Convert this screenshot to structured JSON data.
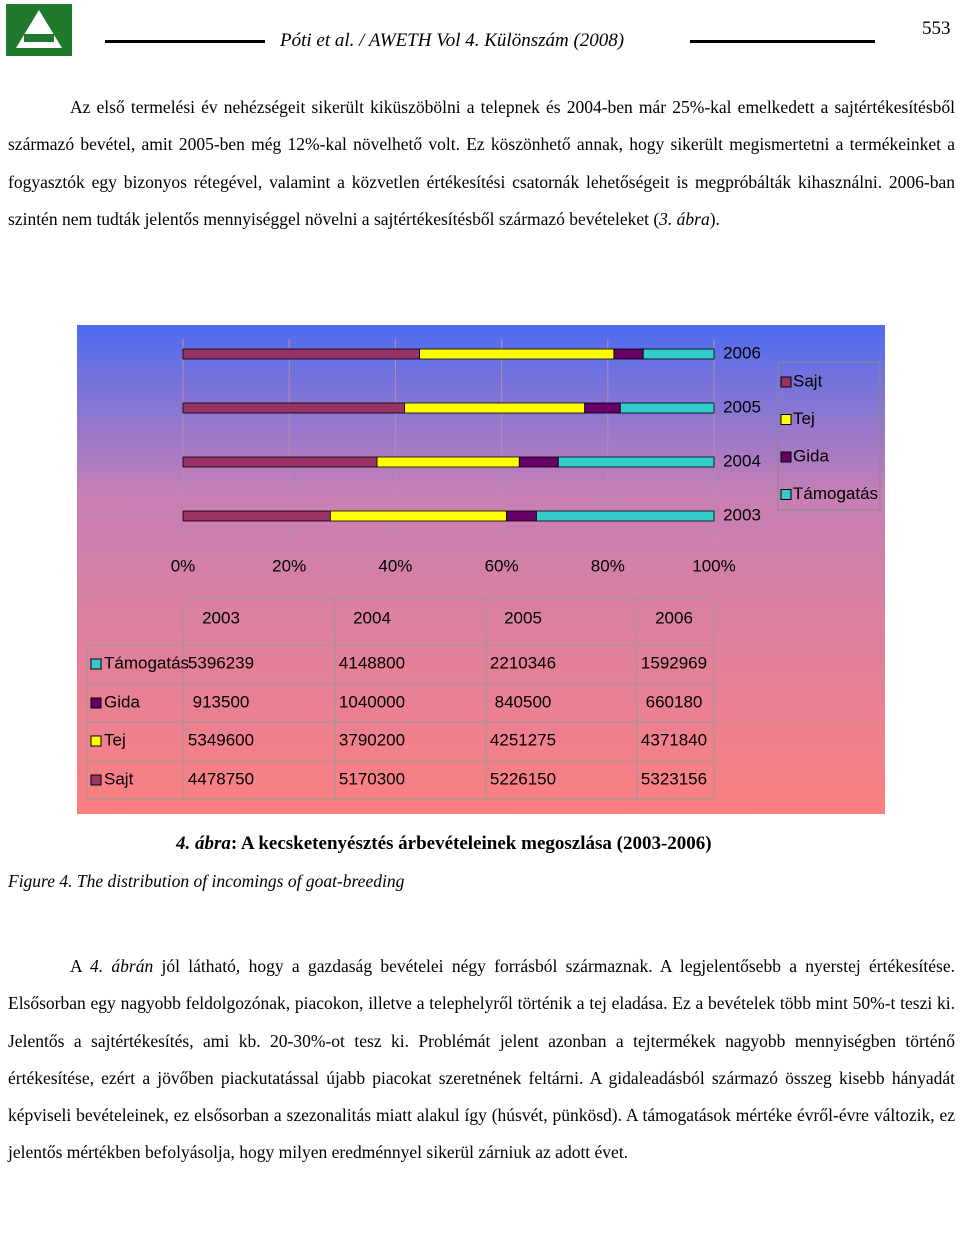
{
  "header": {
    "citation": "Póti et al. / AWETH Vol 4. Különszám (2008)",
    "page_number": "553"
  },
  "paragraphs": [
    [
      "Az első termelési év nehézségeit sikerült kiküszöbölni a telepnek és 2004-ben már 25%-kal emelkedett a sajtértékesítésből származó bevétel, amit 2005-ben még 12%-kal növelhető volt. Ez köszönhető annak, hogy sikerült megismertetni a termékeinket a fogyasztók egy bizonyos rétegével, valamint a közvetlen értékesítési csatornák lehetőségeit is megpróbálták kihasználni. 2006-ban szintén nem tudták jelentős mennyiséggel növelni a sajtértékesítésből származó bevételeket (",
      "3. ábra",
      ")."
    ],
    [
      "A ",
      "4. ábrán",
      " jól látható, hogy a gazdaság bevételei négy forrásból származnak. A legjelentősebb a nyerstej értékesítése. Elsősorban egy nagyobb feldolgozónak, piacokon, illetve a telephelyről történik a tej eladása. Ez a bevételek több mint 50%-t teszi ki. Jelentős a sajtértékesítés, ami kb. 20-30%-ot tesz ki. Problémát jelent azonban a tejtermékek nagyobb mennyiségben történő értékesítése, ezért a jövőben piackutatással újabb piacokat szeretnének feltárni. A gidaleadásból származó összeg kisebb hányadát képviseli bevételeinek, ez elsősorban a szezonalitás miatt alakul így (húsvét, pünkösd). A támogatások mértéke évről-évre változik, ez jelentős mértékben befolyásolja, hogy milyen eredménnyel sikerül zárniuk az adott évet."
    ]
  ],
  "figure": {
    "label": "4. ábra",
    "caption": ": A kecsketenyésztés árbevételeinek megoszlása (2003-2006)",
    "english_caption": "Figure 4. The distribution of incomings of goat-breeding"
  },
  "chart_data": {
    "type": "bar",
    "orientation": "horizontal",
    "stacking": "percent",
    "categories": [
      "2003",
      "2004",
      "2005",
      "2006"
    ],
    "series": [
      {
        "name": "Sajt",
        "color": "#993366",
        "values": [
          4478750,
          5170300,
          5226150,
          5323156
        ]
      },
      {
        "name": "Tej",
        "color": "#ffff00",
        "values": [
          5349600,
          3790200,
          4251275,
          4371840
        ]
      },
      {
        "name": "Gida",
        "color": "#660066",
        "values": [
          913500,
          1040000,
          840500,
          660180
        ]
      },
      {
        "name": "Támogatás",
        "color": "#33cccc",
        "values": [
          5396239,
          4148800,
          2210346,
          1592969
        ]
      }
    ],
    "xlim": [
      0,
      100
    ],
    "xticks": [
      {
        "value": 0,
        "label": "0%"
      },
      {
        "value": 20,
        "label": "20%"
      },
      {
        "value": 40,
        "label": "40%"
      },
      {
        "value": 60,
        "label": "60%"
      },
      {
        "value": 80,
        "label": "80%"
      },
      {
        "value": 100,
        "label": "100%"
      }
    ],
    "grid": true,
    "legend": "right",
    "data_table": true
  }
}
